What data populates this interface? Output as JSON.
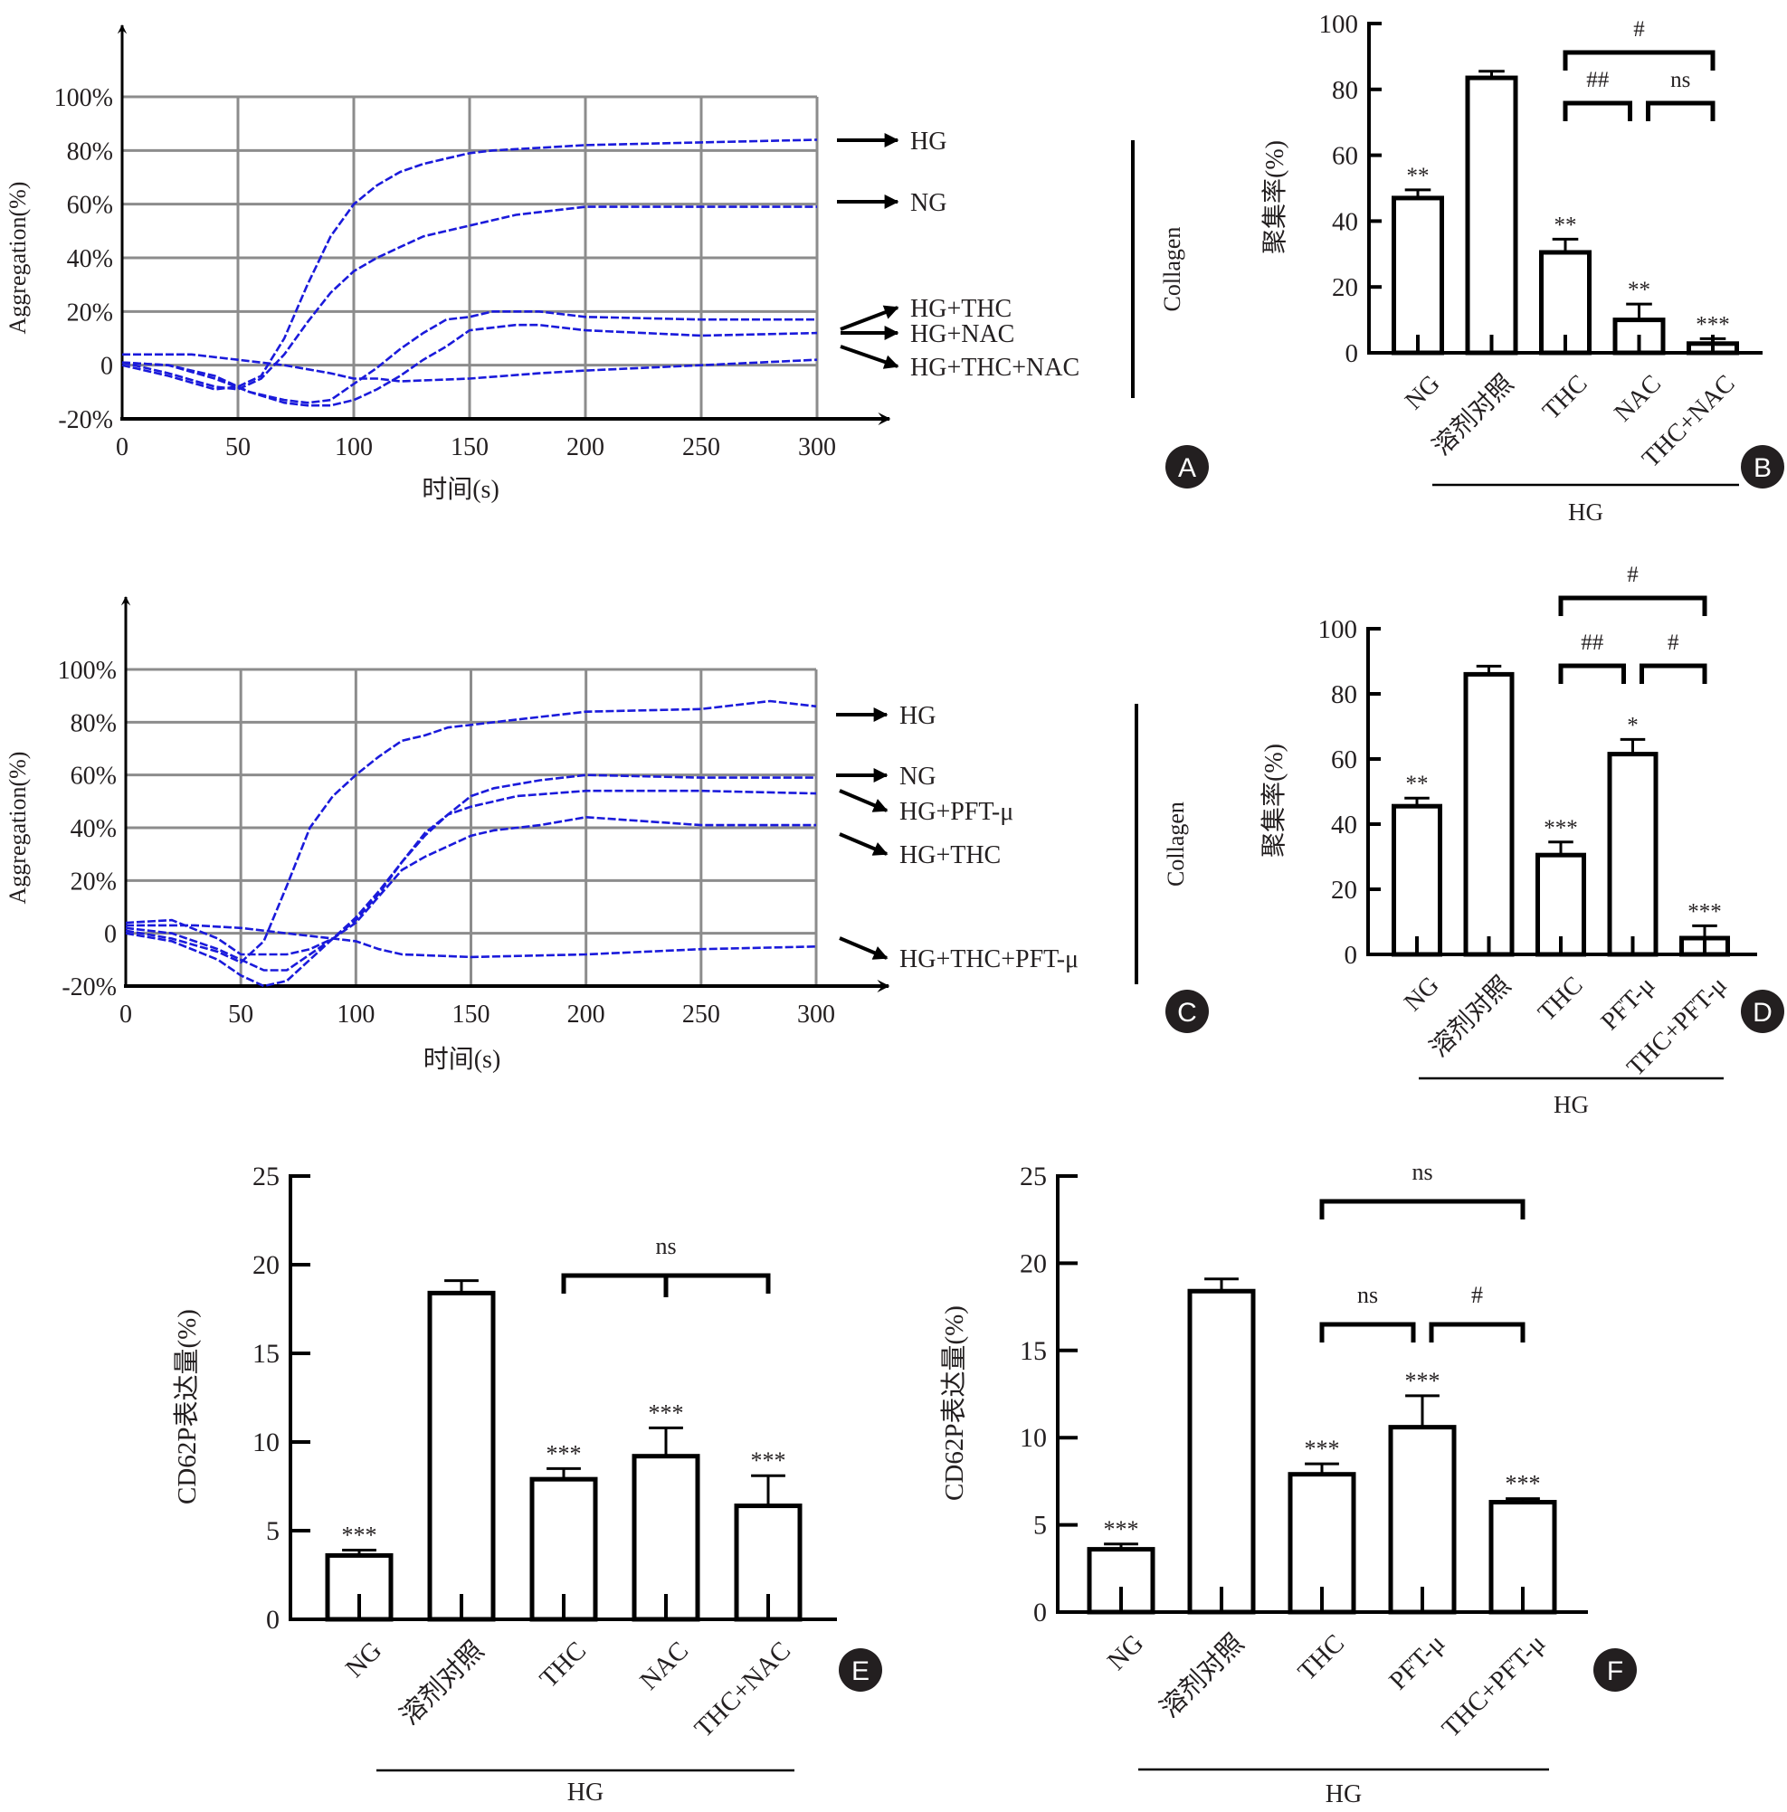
{
  "chart_data": [
    {
      "panel": "A",
      "type": "line",
      "xlabel": "时间(s)",
      "ylabel": "Aggregation(%)",
      "side_label": "Collagen",
      "xlim": [
        0,
        300
      ],
      "ylim": [
        -20,
        100
      ],
      "xticks": [
        "0",
        "50",
        "100",
        "150",
        "200",
        "250",
        "300"
      ],
      "yticks": [
        "-20%",
        "0",
        "20%",
        "40%",
        "60%",
        "80%",
        "100%"
      ],
      "grid": true,
      "series": [
        {
          "name": "HG",
          "x": [
            0,
            20,
            40,
            50,
            60,
            70,
            80,
            90,
            100,
            110,
            120,
            130,
            140,
            150,
            160,
            180,
            200,
            250,
            300
          ],
          "y": [
            0,
            -4,
            -9,
            -8,
            -4,
            10,
            30,
            48,
            60,
            67,
            72,
            75,
            77,
            79,
            80,
            81,
            82,
            83,
            84
          ]
        },
        {
          "name": "NG",
          "x": [
            0,
            20,
            40,
            50,
            60,
            70,
            80,
            90,
            100,
            110,
            120,
            130,
            140,
            150,
            170,
            200,
            250,
            300
          ],
          "y": [
            1,
            -3,
            -8,
            -9,
            -5,
            4,
            16,
            27,
            35,
            40,
            44,
            48,
            50,
            52,
            56,
            59,
            59,
            59
          ]
        },
        {
          "name": "HG+THC",
          "x": [
            0,
            20,
            40,
            55,
            70,
            80,
            90,
            100,
            110,
            120,
            130,
            140,
            150,
            160,
            180,
            200,
            250,
            300
          ],
          "y": [
            1,
            0,
            -4,
            -10,
            -13,
            -14,
            -13,
            -7,
            -1,
            6,
            12,
            17,
            18,
            20,
            20,
            18,
            17,
            17
          ]
        },
        {
          "name": "HG+NAC",
          "x": [
            0,
            20,
            40,
            55,
            70,
            80,
            90,
            100,
            110,
            120,
            130,
            140,
            150,
            170,
            180,
            200,
            250,
            300
          ],
          "y": [
            1,
            0,
            -5,
            -10,
            -14,
            -15,
            -15,
            -13,
            -9,
            -4,
            2,
            7,
            13,
            15,
            15,
            13,
            11,
            12
          ]
        },
        {
          "name": "HG+THC+NAC",
          "x": [
            0,
            30,
            50,
            70,
            90,
            100,
            110,
            120,
            150,
            180,
            200,
            250,
            300
          ],
          "y": [
            4,
            4,
            2,
            0,
            -3,
            -5,
            -5,
            -6,
            -5,
            -3,
            -2,
            0,
            2
          ]
        }
      ],
      "arrow_labels": [
        "HG",
        "NG",
        "HG+THC",
        "HG+NAC",
        "HG+THC+NAC"
      ]
    },
    {
      "panel": "B",
      "type": "bar",
      "ylabel": "聚集率(%)",
      "ylim": [
        0,
        100
      ],
      "yticks": [
        "0",
        "20",
        "40",
        "60",
        "80",
        "100"
      ],
      "categories": [
        "NG",
        "溶剂对照",
        "THC",
        "NAC",
        "THC+NAC"
      ],
      "values": [
        47,
        83.5,
        30.5,
        10,
        2.8
      ],
      "errors": [
        2.5,
        2,
        4,
        4.8,
        1.5
      ],
      "significance": [
        "**",
        "",
        "**",
        "**",
        "***"
      ],
      "group_label": "HG",
      "brackets": [
        {
          "from": 2,
          "to": 4,
          "label": "#",
          "level": 2
        },
        {
          "from": 2,
          "to": 3,
          "label": "##",
          "level": 1
        },
        {
          "from": 3,
          "to": 4,
          "label": "ns",
          "level": 1
        }
      ]
    },
    {
      "panel": "C",
      "type": "line",
      "xlabel": "时间(s)",
      "ylabel": "Aggregation(%)",
      "side_label": "Collagen",
      "xlim": [
        0,
        300
      ],
      "ylim": [
        -20,
        100
      ],
      "xticks": [
        "0",
        "50",
        "100",
        "150",
        "200",
        "250",
        "300"
      ],
      "yticks": [
        "-20%",
        "0",
        "20%",
        "40%",
        "60%",
        "80%",
        "100%"
      ],
      "grid": true,
      "series": [
        {
          "name": "HG",
          "x": [
            0,
            20,
            40,
            50,
            60,
            70,
            80,
            90,
            100,
            110,
            120,
            130,
            140,
            150,
            170,
            200,
            250,
            280,
            300
          ],
          "y": [
            1,
            -2,
            -7,
            -11,
            -3,
            18,
            40,
            52,
            60,
            67,
            73,
            75,
            78,
            79,
            81,
            84,
            85,
            88,
            86
          ]
        },
        {
          "name": "NG",
          "x": [
            0,
            20,
            40,
            50,
            60,
            70,
            80,
            90,
            100,
            110,
            120,
            130,
            140,
            150,
            160,
            180,
            200,
            250,
            300
          ],
          "y": [
            2,
            0,
            -6,
            -10,
            -14,
            -14,
            -8,
            -2,
            6,
            16,
            27,
            37,
            45,
            52,
            55,
            58,
            60,
            59,
            59
          ]
        },
        {
          "name": "HG+PFT-μ",
          "x": [
            0,
            20,
            40,
            50,
            60,
            70,
            80,
            90,
            100,
            110,
            120,
            130,
            140,
            150,
            170,
            200,
            250,
            300
          ],
          "y": [
            0,
            -3,
            -10,
            -16,
            -20,
            -18,
            -10,
            -2,
            5,
            15,
            27,
            38,
            45,
            48,
            52,
            54,
            54,
            53
          ]
        },
        {
          "name": "HG+THC",
          "x": [
            0,
            20,
            40,
            50,
            60,
            70,
            80,
            90,
            100,
            110,
            120,
            130,
            140,
            150,
            160,
            180,
            200,
            250,
            300
          ],
          "y": [
            4,
            5,
            -2,
            -8,
            -8,
            -8,
            -6,
            -2,
            4,
            14,
            24,
            29,
            33,
            37,
            39,
            41,
            44,
            41,
            41
          ]
        },
        {
          "name": "HG+THC+PFT-μ",
          "x": [
            0,
            30,
            50,
            70,
            90,
            100,
            110,
            120,
            150,
            200,
            250,
            300
          ],
          "y": [
            3,
            3,
            2,
            0,
            -2,
            -3,
            -6,
            -8,
            -9,
            -8,
            -6,
            -5
          ]
        }
      ],
      "arrow_labels": [
        "HG",
        "NG",
        "HG+PFT-μ",
        "HG+THC",
        "HG+THC+PFT-μ"
      ]
    },
    {
      "panel": "D",
      "type": "bar",
      "ylabel": "聚集率(%)",
      "ylim": [
        0,
        100
      ],
      "yticks": [
        "0",
        "20",
        "40",
        "60",
        "80",
        "100"
      ],
      "categories": [
        "NG",
        "溶剂对照",
        "THC",
        "PFT-μ",
        "THC+PFT-μ"
      ],
      "values": [
        45.5,
        86,
        30.5,
        61.5,
        5
      ],
      "errors": [
        2.5,
        2.5,
        4,
        4.5,
        3.8
      ],
      "significance": [
        "**",
        "",
        "***",
        "*",
        "***"
      ],
      "group_label": "HG",
      "brackets": [
        {
          "from": 2,
          "to": 4,
          "label": "#",
          "level": 2
        },
        {
          "from": 2,
          "to": 3,
          "label": "##",
          "level": 1
        },
        {
          "from": 3,
          "to": 4,
          "label": "#",
          "level": 1
        }
      ]
    },
    {
      "panel": "E",
      "type": "bar",
      "ylabel": "CD62P表达量(%)",
      "ylim": [
        0,
        25
      ],
      "yticks": [
        "0",
        "5",
        "10",
        "15",
        "20",
        "25"
      ],
      "categories": [
        "NG",
        "溶剂对照",
        "THC",
        "NAC",
        "THC+NAC"
      ],
      "values": [
        3.6,
        18.4,
        7.9,
        9.2,
        6.4
      ],
      "errors": [
        0.3,
        0.7,
        0.6,
        1.6,
        1.7
      ],
      "significance": [
        "***",
        "",
        "***",
        "***",
        "***"
      ],
      "group_label": "HG",
      "brackets": [
        {
          "from": 2,
          "to": 4,
          "label": "ns",
          "level": 1,
          "mid_tick": true
        }
      ]
    },
    {
      "panel": "F",
      "type": "bar",
      "ylabel": "CD62P表达量(%)",
      "ylim": [
        0,
        25
      ],
      "yticks": [
        "0",
        "5",
        "10",
        "15",
        "20",
        "25"
      ],
      "categories": [
        "NG",
        "溶剂对照",
        "THC",
        "PFT-μ",
        "THC+PFT-μ"
      ],
      "values": [
        3.6,
        18.4,
        7.9,
        10.6,
        6.3
      ],
      "errors": [
        0.3,
        0.7,
        0.6,
        1.8,
        0.2
      ],
      "significance": [
        "***",
        "",
        "***",
        "***",
        "***"
      ],
      "group_label": "HG",
      "brackets": [
        {
          "from": 2,
          "to": 4,
          "label": "ns",
          "level": 2
        },
        {
          "from": 2,
          "to": 3,
          "label": "ns",
          "level": 1
        },
        {
          "from": 3,
          "to": 4,
          "label": "#",
          "level": 1
        }
      ]
    }
  ],
  "panel_badges": [
    "A",
    "B",
    "C",
    "D",
    "E",
    "F"
  ],
  "colors": {
    "curve": "#1a1adb",
    "grid": "#8c8c8c",
    "ink": "#231f20"
  }
}
